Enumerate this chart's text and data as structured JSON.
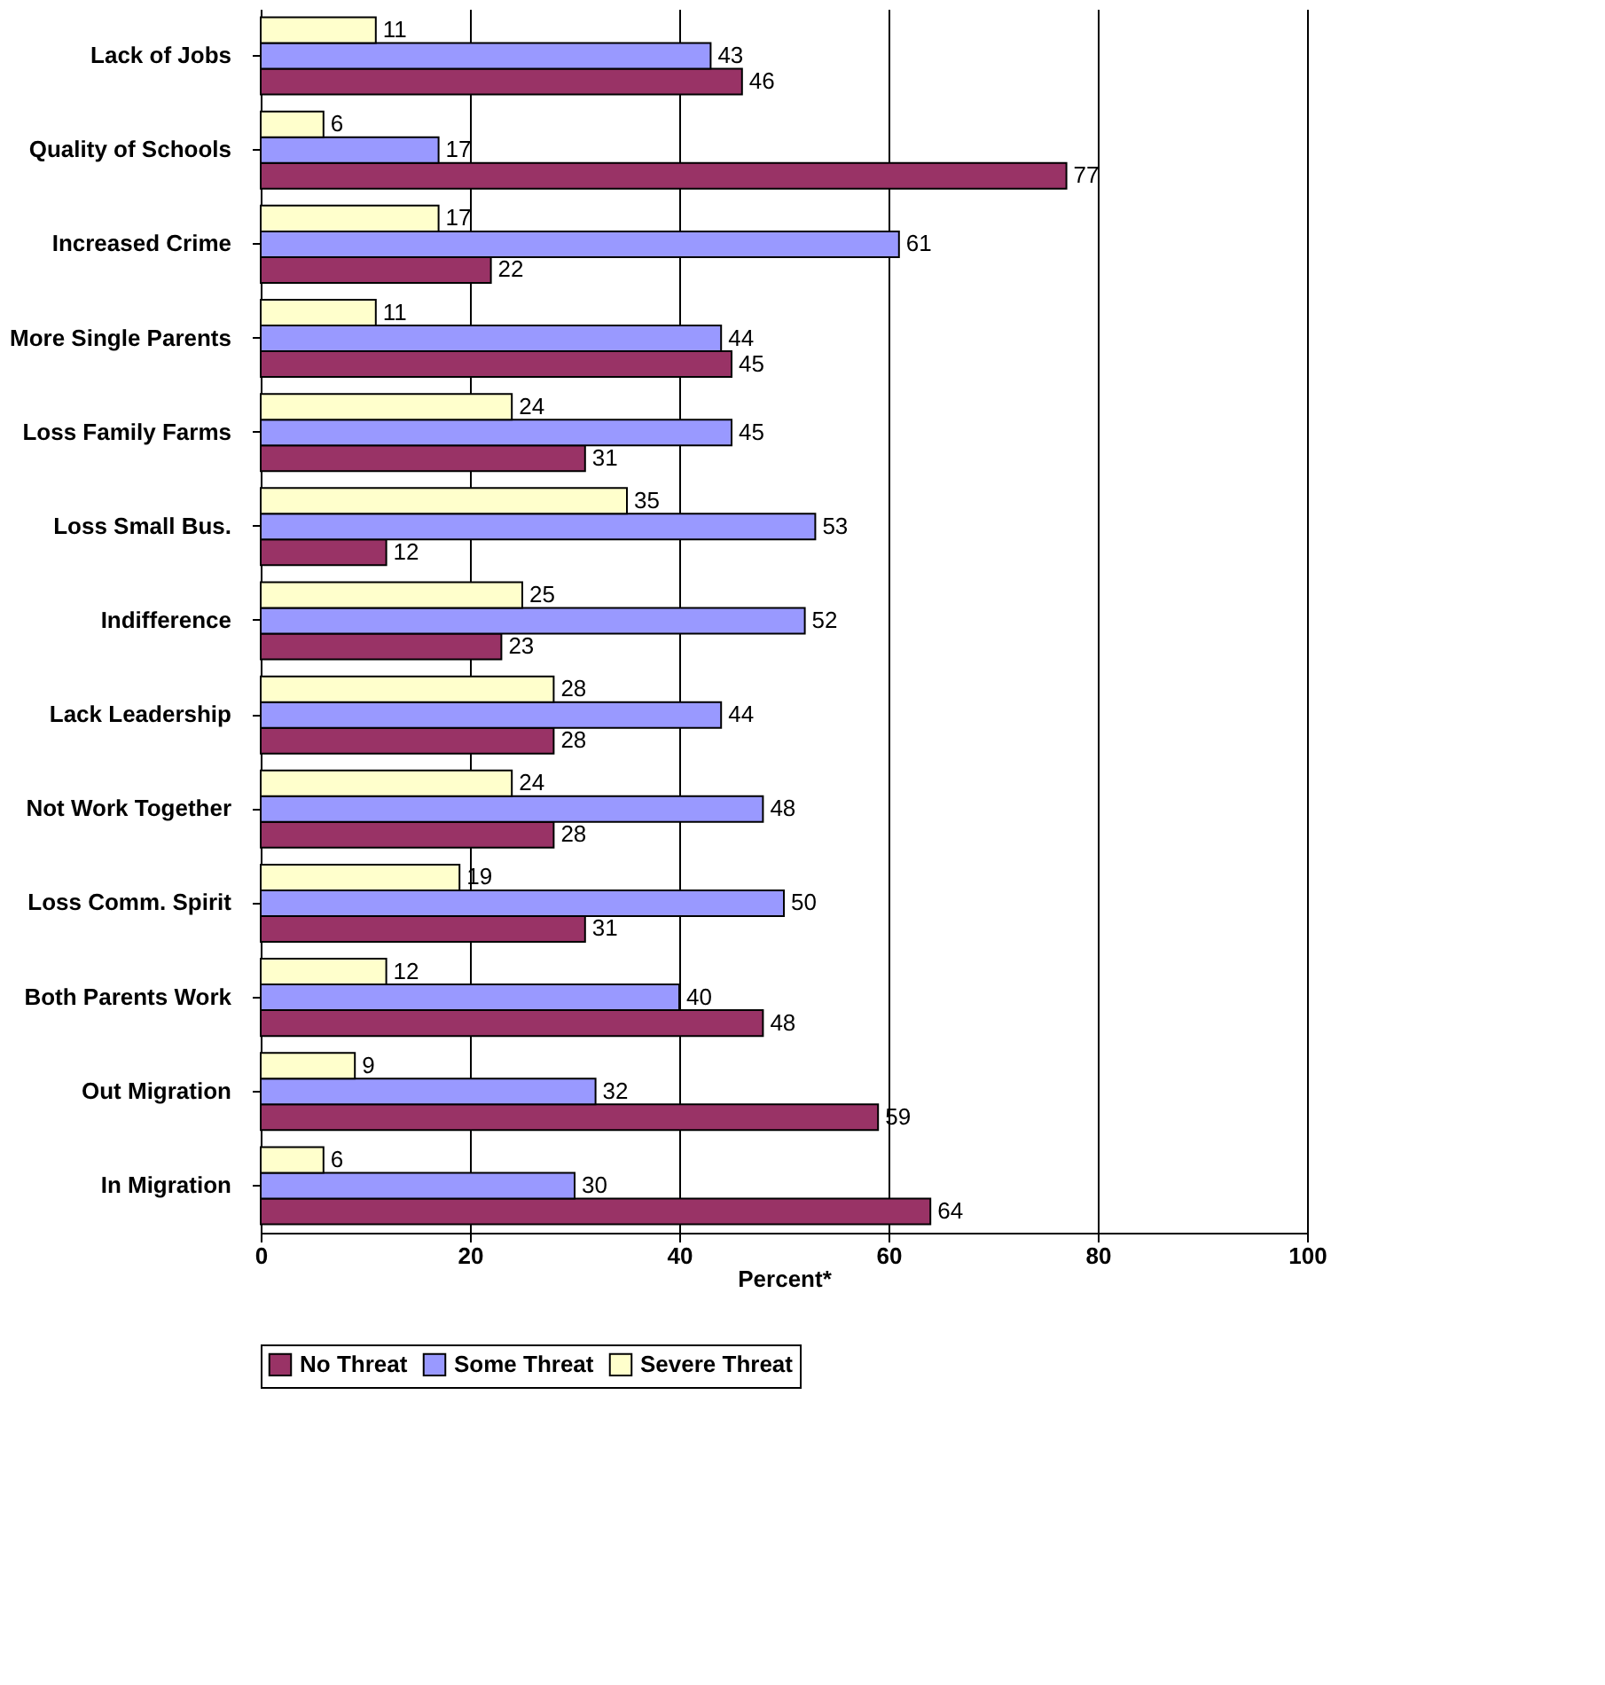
{
  "chart_data": {
    "type": "bar",
    "orientation": "horizontal",
    "xlabel": "Percent*",
    "categories": [
      "Lack of Jobs",
      "Quality of Schools",
      "Increased Crime",
      "More Single Parents",
      "Loss Family Farms",
      "Loss Small Bus.",
      "Indifference",
      "Lack Leadership",
      "Not Work Together",
      "Loss Comm. Spirit",
      "Both Parents Work",
      "Out Migration",
      "In Migration"
    ],
    "series": [
      {
        "name": "No Threat",
        "color": "#993366",
        "values": [
          46,
          77,
          22,
          45,
          31,
          12,
          23,
          28,
          28,
          31,
          48,
          59,
          64
        ]
      },
      {
        "name": "Some Threat",
        "color": "#9999ff",
        "values": [
          43,
          17,
          61,
          44,
          45,
          53,
          52,
          44,
          48,
          50,
          40,
          32,
          30
        ]
      },
      {
        "name": "Severe Threat",
        "color": "#ffffcc",
        "values": [
          11,
          6,
          17,
          11,
          24,
          35,
          25,
          28,
          24,
          19,
          12,
          9,
          6
        ]
      }
    ],
    "xlim": [
      0,
      100
    ],
    "xticks": [
      0,
      20,
      40,
      60,
      80,
      100
    ],
    "grid": "x",
    "legend": "bottom",
    "data_labels": true
  }
}
